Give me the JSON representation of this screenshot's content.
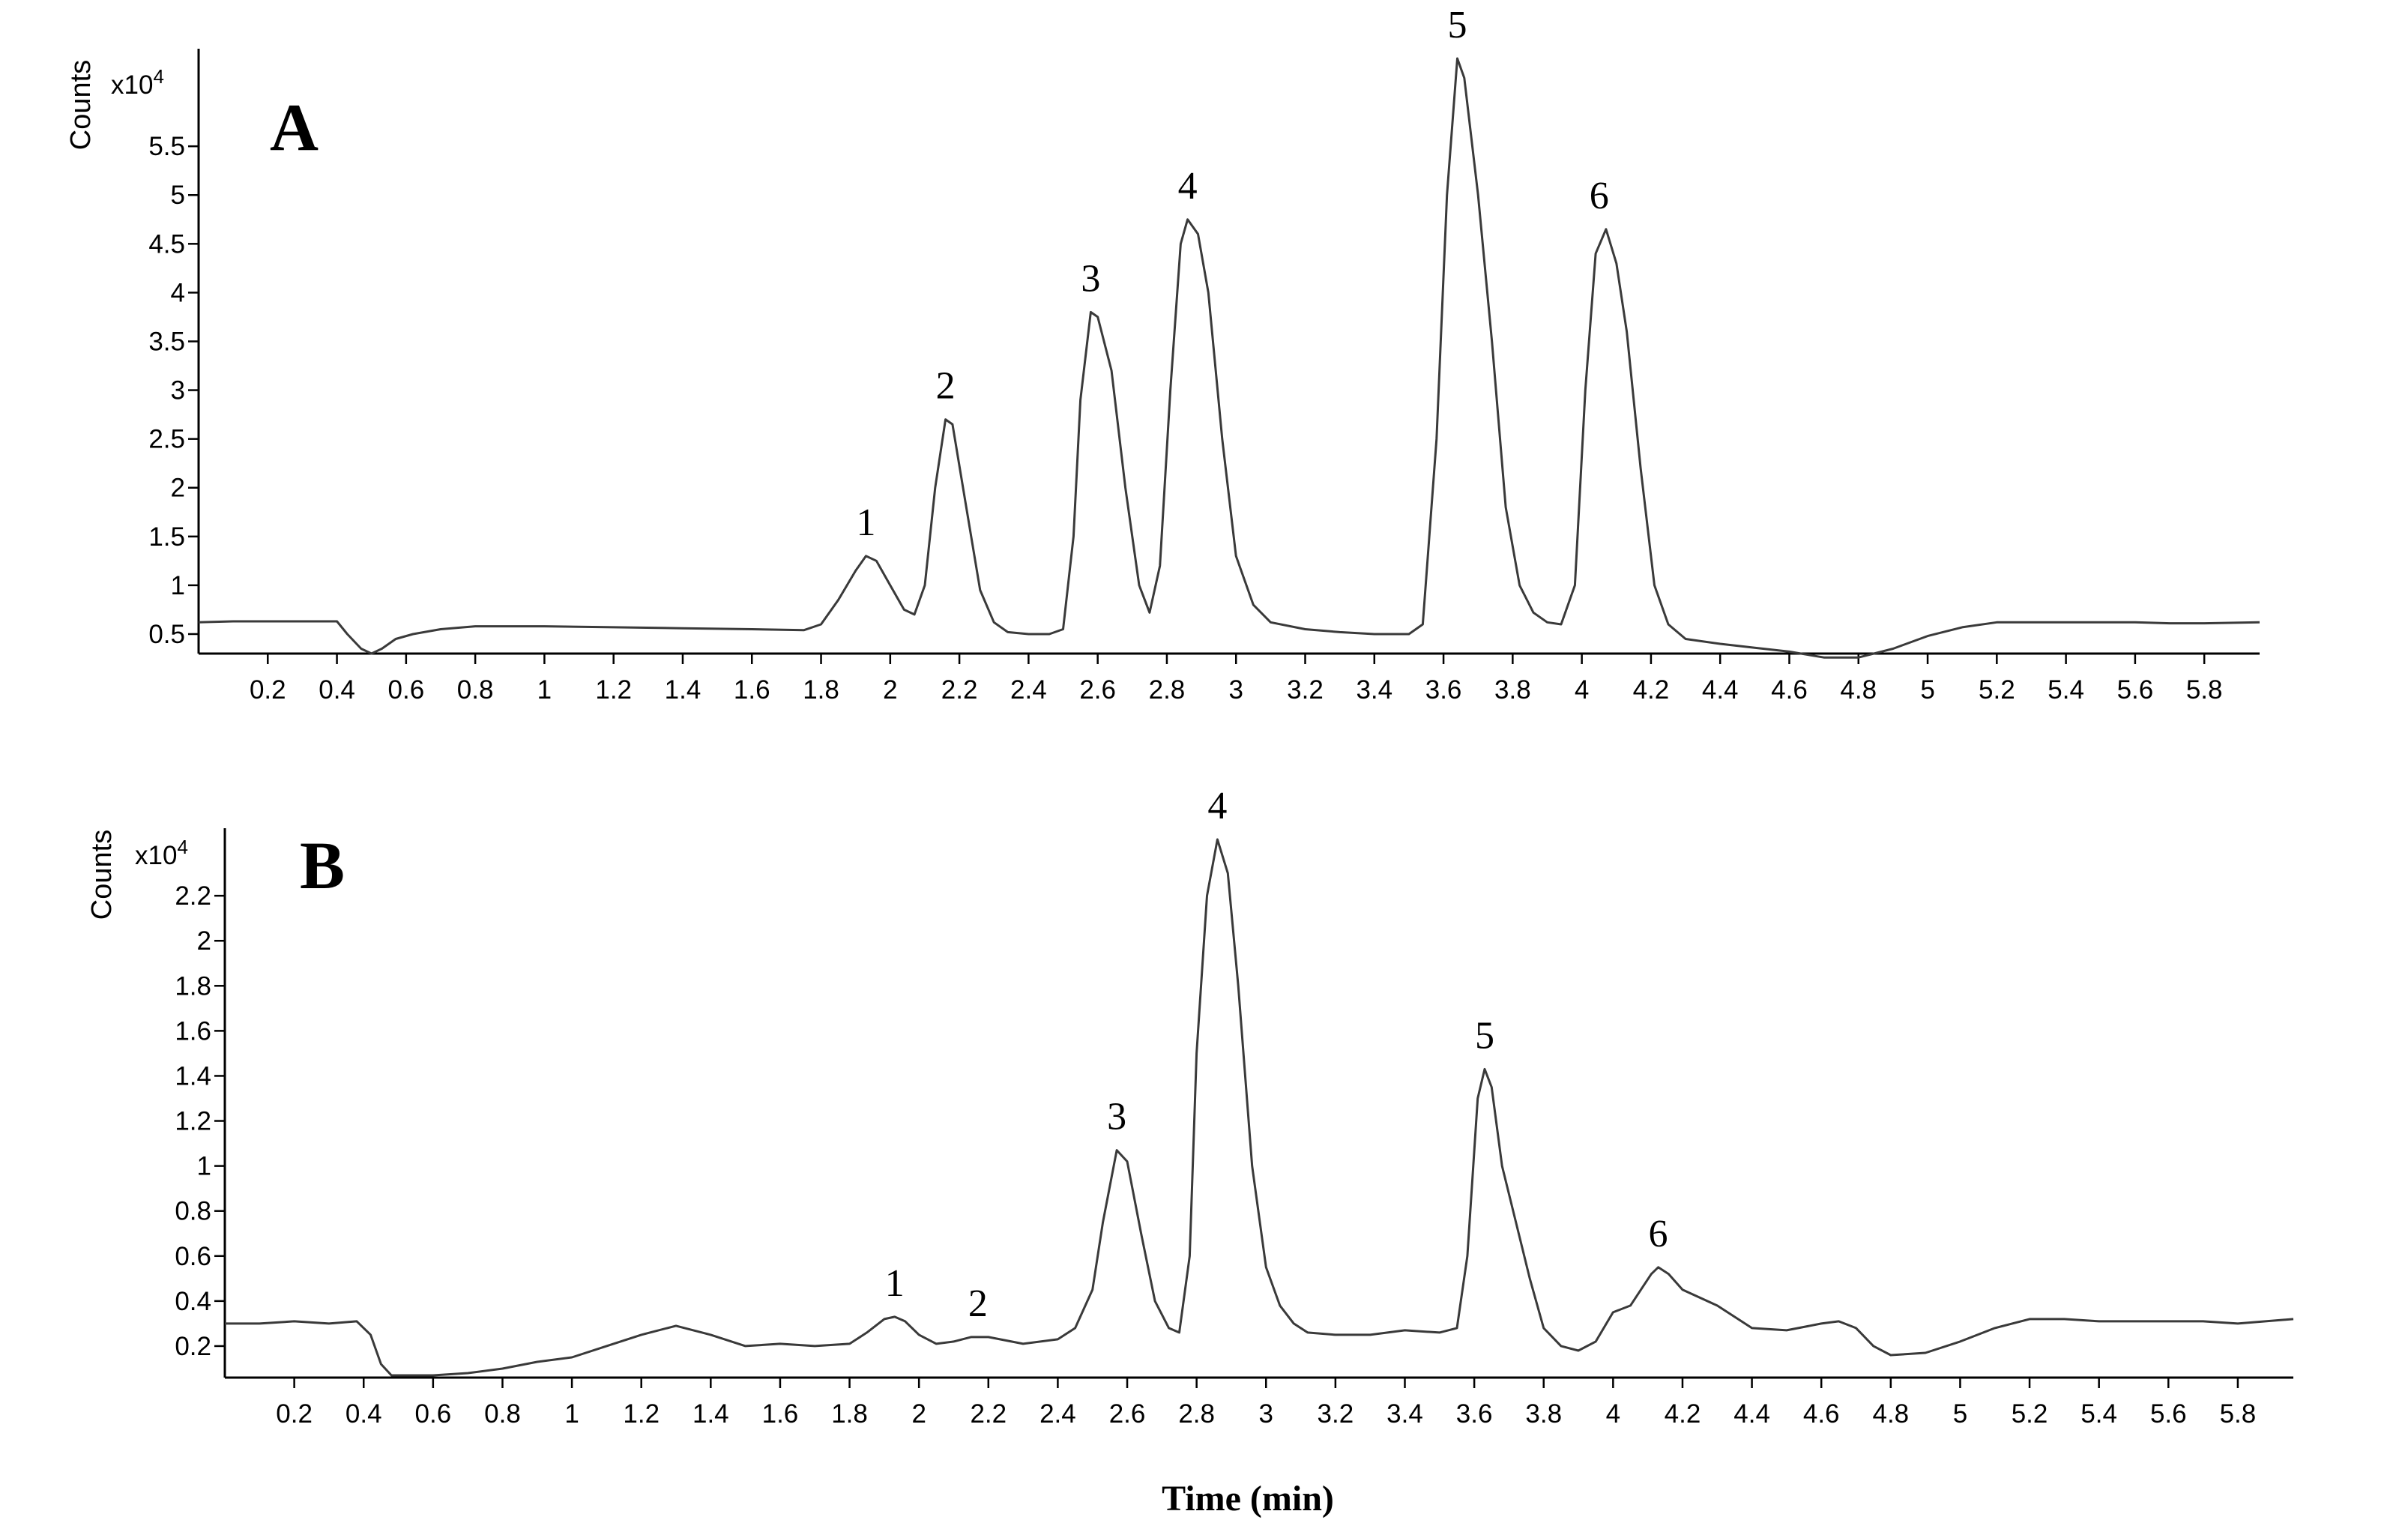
{
  "figure": {
    "xtitle": "Time (min)"
  },
  "chart_data": [
    {
      "type": "line",
      "panel": "A",
      "ylabel": "Counts",
      "y_multiplier": "x10",
      "y_multiplier_exp": "4",
      "xlim": [
        0,
        5.96
      ],
      "ylim": [
        0.3,
        6.5
      ],
      "x_ticks": [
        0.2,
        0.4,
        0.6,
        0.8,
        1,
        1.2,
        1.4,
        1.6,
        1.8,
        2,
        2.2,
        2.4,
        2.6,
        2.8,
        3,
        3.2,
        3.4,
        3.6,
        3.8,
        4,
        4.2,
        4.4,
        4.6,
        4.8,
        5,
        5.2,
        5.4,
        5.6,
        5.8
      ],
      "x_tick_labels": [
        "0.2",
        "0.4",
        "0.6",
        "0.8",
        "1",
        "1.2",
        "1.4",
        "1.6",
        "1.8",
        "2",
        "2.2",
        "2.4",
        "2.6",
        "2.8",
        "3",
        "3.2",
        "3.4",
        "3.6",
        "3.8",
        "4",
        "4.2",
        "4.4",
        "4.6",
        "4.8",
        "5",
        "5.2",
        "5.4",
        "5.6",
        "5.8"
      ],
      "y_ticks": [
        0.5,
        1,
        1.5,
        2,
        2.5,
        3,
        3.5,
        4,
        4.5,
        5,
        5.5
      ],
      "y_tick_labels": [
        "0.5",
        "1",
        "1.5",
        "2",
        "2.5",
        "3",
        "3.5",
        "4",
        "4.5",
        "5",
        "5.5"
      ],
      "peaks": [
        {
          "label": "1",
          "x": 1.93,
          "y": 1.3
        },
        {
          "label": "2",
          "x": 2.16,
          "y": 2.7
        },
        {
          "label": "3",
          "x": 2.58,
          "y": 3.8
        },
        {
          "label": "4",
          "x": 2.86,
          "y": 4.75
        },
        {
          "label": "5",
          "x": 3.64,
          "y": 6.4
        },
        {
          "label": "6",
          "x": 4.05,
          "y": 4.65
        }
      ],
      "series": [
        {
          "name": "A",
          "x": [
            0,
            0.1,
            0.2,
            0.3,
            0.4,
            0.43,
            0.47,
            0.5,
            0.53,
            0.57,
            0.62,
            0.7,
            0.8,
            0.9,
            1.0,
            1.2,
            1.4,
            1.6,
            1.75,
            1.8,
            1.85,
            1.9,
            1.93,
            1.96,
            2.0,
            2.04,
            2.07,
            2.1,
            2.13,
            2.16,
            2.18,
            2.22,
            2.26,
            2.3,
            2.34,
            2.4,
            2.46,
            2.5,
            2.53,
            2.55,
            2.58,
            2.6,
            2.64,
            2.68,
            2.72,
            2.75,
            2.78,
            2.81,
            2.84,
            2.86,
            2.89,
            2.92,
            2.96,
            3.0,
            3.05,
            3.1,
            3.2,
            3.3,
            3.4,
            3.5,
            3.54,
            3.58,
            3.61,
            3.64,
            3.66,
            3.7,
            3.74,
            3.78,
            3.82,
            3.86,
            3.9,
            3.94,
            3.98,
            4.01,
            4.04,
            4.07,
            4.1,
            4.13,
            4.17,
            4.21,
            4.25,
            4.3,
            4.4,
            4.5,
            4.6,
            4.7,
            4.8,
            4.9,
            5.0,
            5.1,
            5.2,
            5.3,
            5.4,
            5.5,
            5.6,
            5.7,
            5.8,
            5.96
          ],
          "y": [
            0.62,
            0.63,
            0.63,
            0.63,
            0.63,
            0.5,
            0.35,
            0.3,
            0.35,
            0.45,
            0.5,
            0.55,
            0.58,
            0.58,
            0.58,
            0.57,
            0.56,
            0.55,
            0.54,
            0.6,
            0.85,
            1.15,
            1.3,
            1.25,
            1.0,
            0.75,
            0.7,
            1.0,
            2.0,
            2.7,
            2.65,
            1.8,
            0.95,
            0.62,
            0.52,
            0.5,
            0.5,
            0.55,
            1.5,
            2.9,
            3.8,
            3.75,
            3.2,
            2.0,
            1.0,
            0.72,
            1.2,
            3.0,
            4.5,
            4.75,
            4.6,
            4.0,
            2.5,
            1.3,
            0.8,
            0.62,
            0.55,
            0.52,
            0.5,
            0.5,
            0.6,
            2.5,
            5.0,
            6.4,
            6.2,
            5.0,
            3.5,
            1.8,
            1.0,
            0.72,
            0.62,
            0.6,
            1.0,
            3.0,
            4.4,
            4.65,
            4.3,
            3.6,
            2.2,
            1.0,
            0.6,
            0.45,
            0.4,
            0.36,
            0.32,
            0.26,
            0.26,
            0.35,
            0.48,
            0.57,
            0.62,
            0.62,
            0.62,
            0.62,
            0.62,
            0.61,
            0.61,
            0.62
          ]
        }
      ]
    },
    {
      "type": "line",
      "panel": "B",
      "ylabel": "Counts",
      "y_multiplier": "x10",
      "y_multiplier_exp": "4",
      "xlim": [
        0,
        5.96
      ],
      "ylim": [
        0.06,
        2.5
      ],
      "x_ticks": [
        0.2,
        0.4,
        0.6,
        0.8,
        1,
        1.2,
        1.4,
        1.6,
        1.8,
        2,
        2.2,
        2.4,
        2.6,
        2.8,
        3,
        3.2,
        3.4,
        3.6,
        3.8,
        4,
        4.2,
        4.4,
        4.6,
        4.8,
        5,
        5.2,
        5.4,
        5.6,
        5.8
      ],
      "x_tick_labels": [
        "0.2",
        "0.4",
        "0.6",
        "0.8",
        "1",
        "1.2",
        "1.4",
        "1.6",
        "1.8",
        "2",
        "2.2",
        "2.4",
        "2.6",
        "2.8",
        "3",
        "3.2",
        "3.4",
        "3.6",
        "3.8",
        "4",
        "4.2",
        "4.4",
        "4.6",
        "4.8",
        "5",
        "5.2",
        "5.4",
        "5.6",
        "5.8"
      ],
      "y_ticks": [
        0.2,
        0.4,
        0.6,
        0.8,
        1,
        1.2,
        1.4,
        1.6,
        1.8,
        2,
        2.2
      ],
      "y_tick_labels": [
        "0.2",
        "0.4",
        "0.6",
        "0.8",
        "1",
        "1.2",
        "1.4",
        "1.6",
        "1.8",
        "2",
        "2.2"
      ],
      "peaks": [
        {
          "label": "1",
          "x": 1.93,
          "y": 0.33
        },
        {
          "label": "2",
          "x": 2.17,
          "y": 0.24
        },
        {
          "label": "3",
          "x": 2.57,
          "y": 1.07
        },
        {
          "label": "4",
          "x": 2.86,
          "y": 2.45
        },
        {
          "label": "5",
          "x": 3.63,
          "y": 1.43
        },
        {
          "label": "6",
          "x": 4.13,
          "y": 0.55
        }
      ],
      "series": [
        {
          "name": "B",
          "x": [
            0,
            0.1,
            0.2,
            0.3,
            0.38,
            0.42,
            0.45,
            0.48,
            0.5,
            0.6,
            0.7,
            0.8,
            0.9,
            1.0,
            1.1,
            1.2,
            1.3,
            1.35,
            1.4,
            1.5,
            1.6,
            1.7,
            1.8,
            1.85,
            1.9,
            1.93,
            1.96,
            2.0,
            2.05,
            2.1,
            2.15,
            2.2,
            2.3,
            2.4,
            2.45,
            2.5,
            2.53,
            2.57,
            2.6,
            2.64,
            2.68,
            2.72,
            2.75,
            2.78,
            2.8,
            2.83,
            2.86,
            2.89,
            2.92,
            2.96,
            3.0,
            3.04,
            3.08,
            3.12,
            3.2,
            3.3,
            3.4,
            3.5,
            3.55,
            3.58,
            3.61,
            3.63,
            3.65,
            3.68,
            3.72,
            3.76,
            3.8,
            3.85,
            3.9,
            3.95,
            4.0,
            4.05,
            4.08,
            4.11,
            4.13,
            4.16,
            4.2,
            4.3,
            4.4,
            4.5,
            4.6,
            4.65,
            4.7,
            4.75,
            4.8,
            4.9,
            5.0,
            5.1,
            5.2,
            5.3,
            5.4,
            5.5,
            5.6,
            5.7,
            5.8,
            5.96
          ],
          "y": [
            0.3,
            0.3,
            0.31,
            0.3,
            0.31,
            0.25,
            0.12,
            0.07,
            0.07,
            0.07,
            0.08,
            0.1,
            0.13,
            0.15,
            0.2,
            0.25,
            0.29,
            0.27,
            0.25,
            0.2,
            0.21,
            0.2,
            0.21,
            0.26,
            0.32,
            0.33,
            0.31,
            0.25,
            0.21,
            0.22,
            0.24,
            0.24,
            0.21,
            0.23,
            0.28,
            0.45,
            0.75,
            1.07,
            1.02,
            0.7,
            0.4,
            0.28,
            0.26,
            0.6,
            1.5,
            2.2,
            2.45,
            2.3,
            1.8,
            1.0,
            0.55,
            0.38,
            0.3,
            0.26,
            0.25,
            0.25,
            0.27,
            0.26,
            0.28,
            0.6,
            1.3,
            1.43,
            1.35,
            1.0,
            0.75,
            0.5,
            0.28,
            0.2,
            0.18,
            0.22,
            0.35,
            0.38,
            0.45,
            0.52,
            0.55,
            0.52,
            0.45,
            0.38,
            0.28,
            0.27,
            0.3,
            0.31,
            0.28,
            0.2,
            0.16,
            0.17,
            0.22,
            0.28,
            0.32,
            0.32,
            0.31,
            0.31,
            0.31,
            0.31,
            0.3,
            0.32
          ]
        }
      ]
    }
  ]
}
